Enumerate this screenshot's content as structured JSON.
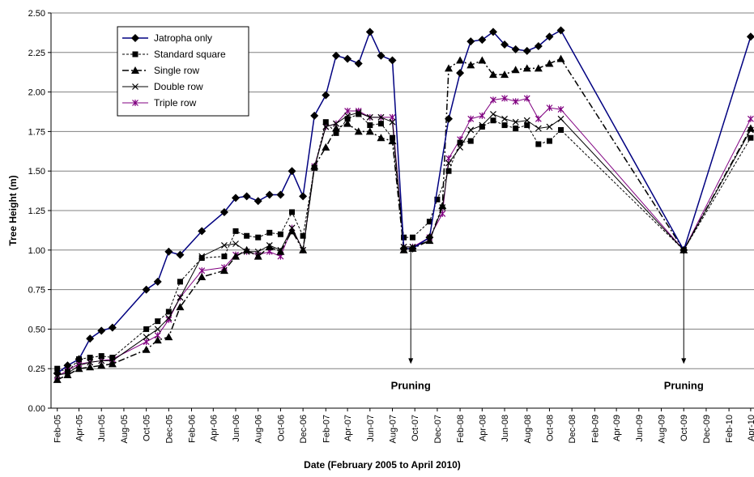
{
  "chart_data": {
    "type": "line",
    "title": "",
    "xlabel": "Date (February 2005 to April 2010)",
    "ylabel": "Tree Height (m)",
    "ylim": [
      0,
      2.5
    ],
    "yticks": [
      "0.00",
      "0.25",
      "0.50",
      "0.75",
      "1.00",
      "1.25",
      "1.50",
      "1.75",
      "2.00",
      "2.25",
      "2.50"
    ],
    "xlim": [
      "2005-01-15",
      "2010-04-10"
    ],
    "x_tick_labels": [
      "Feb-05",
      "Apr-05",
      "Jun-05",
      "Aug-05",
      "Oct-05",
      "Dec-05",
      "Feb-06",
      "Apr-06",
      "Jun-06",
      "Aug-06",
      "Oct-06",
      "Dec-06",
      "Feb-07",
      "Apr-07",
      "Jun-07",
      "Aug-07",
      "Oct-07",
      "Dec-07",
      "Feb-08",
      "Apr-08",
      "Jun-08",
      "Aug-08",
      "Oct-08",
      "Dec-08",
      "Feb-09",
      "Apr-09",
      "Jun-09",
      "Aug-09",
      "Oct-09",
      "Dec-09",
      "Feb-10",
      "Apr-10"
    ],
    "x_tick_dates": [
      "2005-02-01",
      "2005-04-01",
      "2005-06-01",
      "2005-08-01",
      "2005-10-01",
      "2005-12-01",
      "2006-02-01",
      "2006-04-01",
      "2006-06-01",
      "2006-08-01",
      "2006-10-01",
      "2006-12-01",
      "2007-02-01",
      "2007-04-01",
      "2007-06-01",
      "2007-08-01",
      "2007-10-01",
      "2007-12-01",
      "2008-02-01",
      "2008-04-01",
      "2008-06-01",
      "2008-08-01",
      "2008-10-01",
      "2008-12-01",
      "2009-02-01",
      "2009-04-01",
      "2009-06-01",
      "2009-08-01",
      "2009-10-01",
      "2009-12-01",
      "2010-02-01",
      "2010-04-01"
    ],
    "grid": "horizontal",
    "legend_position": "top-left",
    "annotations": [
      {
        "text": "Pruning",
        "date": "2007-09-20",
        "arrow_from": 1.0,
        "arrow_to": 0.28
      },
      {
        "text": "Pruning",
        "date": "2009-10-01",
        "arrow_from": 1.0,
        "arrow_to": 0.28
      }
    ],
    "series": [
      {
        "name": "Jatropha only",
        "color": "#000080",
        "marker": "diamond",
        "dash": "solid",
        "dates": [
          "2005-02-01",
          "2005-03-01",
          "2005-04-01",
          "2005-05-01",
          "2005-06-01",
          "2005-07-01",
          "2005-10-01",
          "2005-11-01",
          "2005-12-01",
          "2006-01-01",
          "2006-03-01",
          "2006-05-01",
          "2006-06-01",
          "2006-07-01",
          "2006-08-01",
          "2006-09-01",
          "2006-10-01",
          "2006-11-01",
          "2006-12-01",
          "2007-01-01",
          "2007-02-01",
          "2007-03-01",
          "2007-04-01",
          "2007-05-01",
          "2007-06-01",
          "2007-07-01",
          "2007-08-01",
          "2007-09-01",
          "2007-09-25",
          "2007-11-10",
          "2008-01-01",
          "2008-02-01",
          "2008-03-01",
          "2008-04-01",
          "2008-05-01",
          "2008-06-01",
          "2008-07-01",
          "2008-08-01",
          "2008-09-01",
          "2008-10-01",
          "2008-11-01",
          "2009-10-01",
          "2010-04-01"
        ],
        "values": [
          0.22,
          0.27,
          0.31,
          0.44,
          0.49,
          0.51,
          0.75,
          0.8,
          0.99,
          0.97,
          1.12,
          1.24,
          1.33,
          1.34,
          1.31,
          1.35,
          1.35,
          1.5,
          1.34,
          1.85,
          1.98,
          2.23,
          2.21,
          2.18,
          2.38,
          2.23,
          2.2,
          1.01,
          1.01,
          1.08,
          1.83,
          2.12,
          2.32,
          2.33,
          2.38,
          2.3,
          2.27,
          2.26,
          2.29,
          2.35,
          2.39,
          1.0,
          2.35
        ]
      },
      {
        "name": "Standard square",
        "color": "#000000",
        "marker": "square",
        "dash": "short-dash",
        "dates": [
          "2005-02-01",
          "2005-03-01",
          "2005-04-01",
          "2005-05-01",
          "2005-06-01",
          "2005-07-01",
          "2005-10-01",
          "2005-11-01",
          "2005-12-01",
          "2006-01-01",
          "2006-03-01",
          "2006-05-01",
          "2006-06-01",
          "2006-07-01",
          "2006-08-01",
          "2006-09-01",
          "2006-10-01",
          "2006-11-01",
          "2006-12-01",
          "2007-01-01",
          "2007-02-01",
          "2007-03-01",
          "2007-04-01",
          "2007-05-01",
          "2007-06-01",
          "2007-07-01",
          "2007-08-01",
          "2007-09-01",
          "2007-09-25",
          "2007-11-10",
          "2007-12-01",
          "2008-01-01",
          "2008-02-01",
          "2008-03-01",
          "2008-04-01",
          "2008-05-01",
          "2008-06-01",
          "2008-07-01",
          "2008-08-01",
          "2008-09-01",
          "2008-10-01",
          "2008-11-01",
          "2009-10-01",
          "2010-04-01"
        ],
        "values": [
          0.25,
          0.23,
          0.31,
          0.32,
          0.33,
          0.32,
          0.5,
          0.55,
          0.61,
          0.8,
          0.95,
          0.96,
          1.12,
          1.09,
          1.08,
          1.11,
          1.1,
          1.24,
          1.09,
          1.52,
          1.81,
          1.74,
          1.83,
          1.86,
          1.79,
          1.8,
          1.71,
          1.08,
          1.08,
          1.18,
          1.32,
          1.5,
          1.68,
          1.69,
          1.78,
          1.82,
          1.79,
          1.77,
          1.79,
          1.67,
          1.69,
          1.76,
          1.0,
          1.71
        ]
      },
      {
        "name": "Single row",
        "color": "#000000",
        "marker": "triangle",
        "dash": "dash-dot",
        "dates": [
          "2005-02-01",
          "2005-03-01",
          "2005-04-01",
          "2005-05-01",
          "2005-06-01",
          "2005-07-01",
          "2005-10-01",
          "2005-11-01",
          "2005-12-01",
          "2006-01-01",
          "2006-03-01",
          "2006-05-01",
          "2006-06-01",
          "2006-07-01",
          "2006-08-01",
          "2006-09-01",
          "2006-10-01",
          "2006-11-01",
          "2006-12-01",
          "2007-01-01",
          "2007-02-01",
          "2007-03-01",
          "2007-04-01",
          "2007-05-01",
          "2007-06-01",
          "2007-07-01",
          "2007-08-01",
          "2007-09-01",
          "2007-09-25",
          "2007-11-10",
          "2007-12-15",
          "2008-01-01",
          "2008-02-01",
          "2008-03-01",
          "2008-04-01",
          "2008-05-01",
          "2008-06-01",
          "2008-07-01",
          "2008-08-01",
          "2008-09-01",
          "2008-10-01",
          "2008-11-01",
          "2009-10-01",
          "2010-04-01"
        ],
        "values": [
          0.18,
          0.21,
          0.25,
          0.26,
          0.27,
          0.28,
          0.37,
          0.43,
          0.45,
          0.64,
          0.83,
          0.87,
          0.96,
          1.0,
          0.96,
          1.02,
          0.99,
          1.12,
          1.0,
          1.53,
          1.65,
          1.77,
          1.8,
          1.75,
          1.75,
          1.71,
          1.69,
          1.0,
          1.01,
          1.06,
          1.28,
          2.15,
          2.2,
          2.17,
          2.2,
          2.11,
          2.11,
          2.14,
          2.15,
          2.15,
          2.18,
          2.21,
          1.0,
          1.77
        ]
      },
      {
        "name": "Double row",
        "color": "#000000",
        "marker": "x",
        "dash": "solid-thin",
        "dates": [
          "2005-02-01",
          "2005-03-01",
          "2005-04-01",
          "2005-05-01",
          "2005-06-01",
          "2005-07-01",
          "2005-10-01",
          "2005-11-01",
          "2005-12-01",
          "2006-01-01",
          "2006-03-01",
          "2006-05-01",
          "2006-06-01",
          "2006-07-01",
          "2006-08-01",
          "2006-09-01",
          "2006-10-01",
          "2006-11-01",
          "2006-12-01",
          "2007-01-01",
          "2007-02-01",
          "2007-03-01",
          "2007-04-01",
          "2007-05-01",
          "2007-06-01",
          "2007-07-01",
          "2007-08-01",
          "2007-09-01",
          "2007-09-25",
          "2007-11-10",
          "2007-12-15",
          "2008-01-01",
          "2008-02-01",
          "2008-03-01",
          "2008-04-01",
          "2008-05-01",
          "2008-06-01",
          "2008-07-01",
          "2008-08-01",
          "2008-09-01",
          "2008-10-01",
          "2008-11-01",
          "2009-10-01",
          "2010-04-01"
        ],
        "values": [
          0.21,
          0.22,
          0.27,
          0.29,
          0.3,
          0.3,
          0.45,
          0.5,
          0.57,
          0.7,
          0.96,
          1.03,
          1.04,
          0.99,
          0.99,
          1.03,
          1.0,
          1.14,
          1.0,
          1.52,
          1.78,
          1.8,
          1.85,
          1.87,
          1.84,
          1.84,
          1.81,
          1.02,
          1.02,
          1.06,
          1.27,
          1.55,
          1.65,
          1.76,
          1.79,
          1.86,
          1.83,
          1.81,
          1.82,
          1.77,
          1.78,
          1.83,
          1.0,
          1.76
        ]
      },
      {
        "name": "Triple row",
        "color": "#800080",
        "marker": "star",
        "dash": "solid-thin",
        "dates": [
          "2005-02-01",
          "2005-03-01",
          "2005-04-01",
          "2005-05-01",
          "2005-06-01",
          "2005-07-01",
          "2005-10-01",
          "2005-11-01",
          "2005-12-01",
          "2006-01-01",
          "2006-03-01",
          "2006-05-01",
          "2006-06-01",
          "2006-07-01",
          "2006-08-01",
          "2006-09-01",
          "2006-10-01",
          "2006-11-01",
          "2006-12-01",
          "2007-01-01",
          "2007-02-01",
          "2007-03-01",
          "2007-04-01",
          "2007-05-01",
          "2007-06-01",
          "2007-07-01",
          "2007-08-01",
          "2007-09-01",
          "2007-09-25",
          "2007-11-10",
          "2007-12-15",
          "2008-01-01",
          "2008-02-01",
          "2008-03-01",
          "2008-04-01",
          "2008-05-01",
          "2008-06-01",
          "2008-07-01",
          "2008-08-01",
          "2008-09-01",
          "2008-10-01",
          "2008-11-01",
          "2009-10-01",
          "2010-04-01"
        ],
        "values": [
          0.2,
          0.24,
          0.28,
          0.29,
          0.3,
          0.31,
          0.42,
          0.46,
          0.56,
          0.7,
          0.87,
          0.89,
          0.97,
          0.99,
          0.97,
          0.99,
          0.96,
          1.14,
          1.0,
          1.53,
          1.78,
          1.8,
          1.88,
          1.88,
          1.84,
          1.84,
          1.84,
          1.02,
          1.02,
          1.08,
          1.23,
          1.58,
          1.7,
          1.83,
          1.85,
          1.95,
          1.96,
          1.94,
          1.96,
          1.83,
          1.9,
          1.89,
          1.0,
          1.83
        ]
      }
    ]
  }
}
